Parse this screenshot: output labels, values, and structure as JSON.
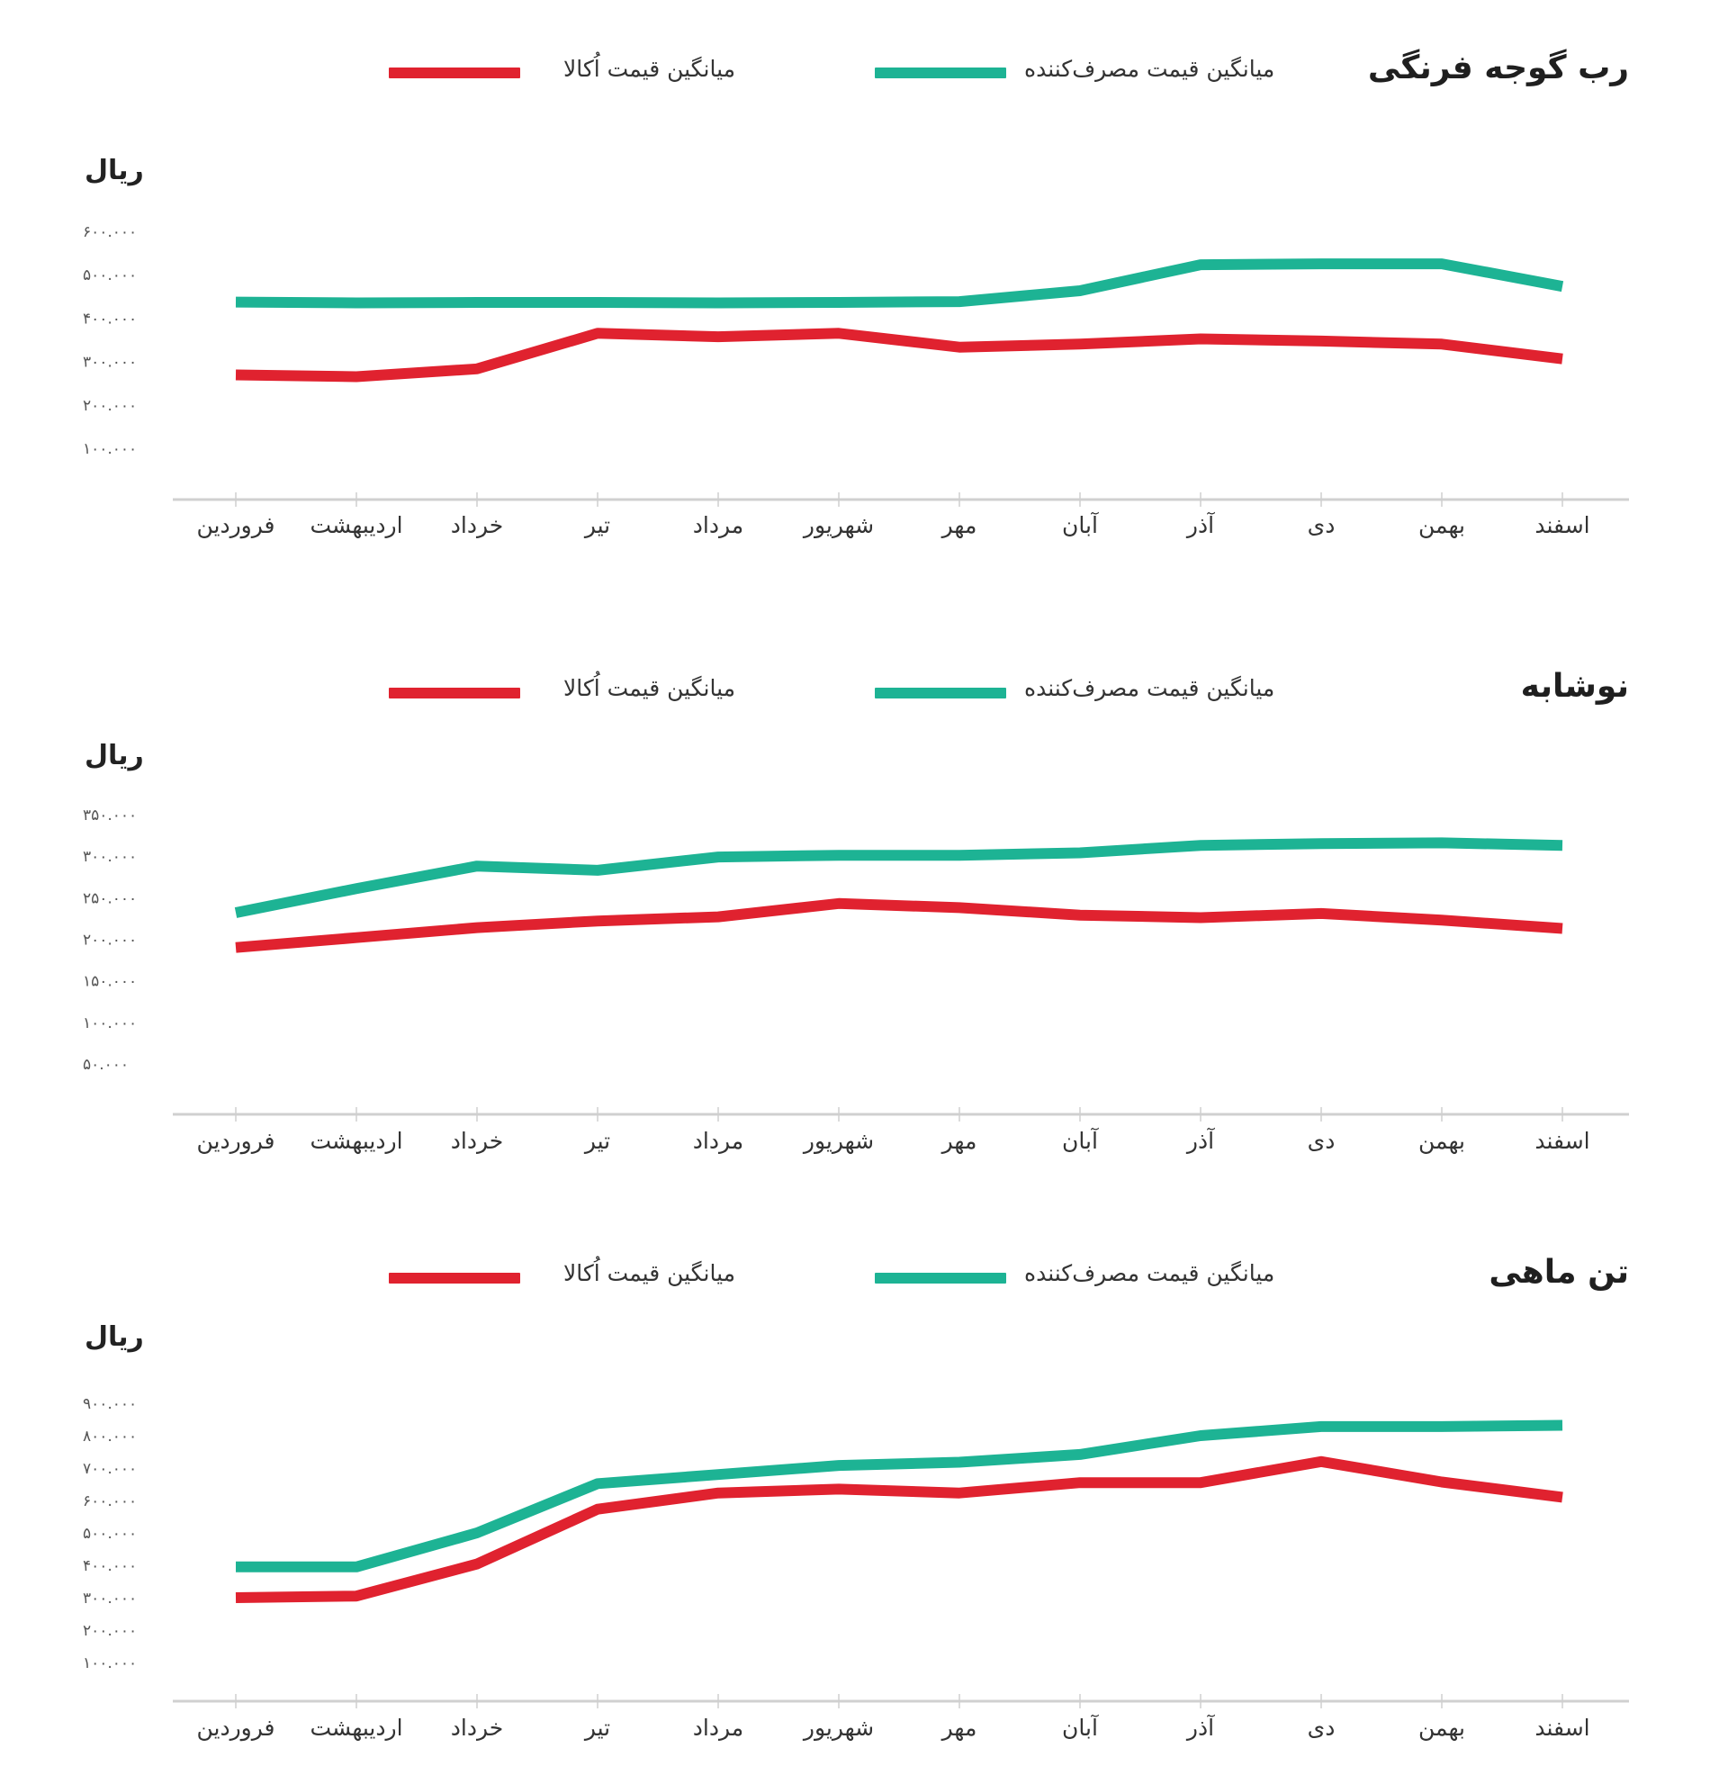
{
  "legend": {
    "consumer_label": "میانگین قیمت مصرف‌کننده",
    "akala_label": "میانگین قیمت اُکالا",
    "consumer_color": "#1DB394",
    "akala_color": "#E0222F"
  },
  "months": [
    "فروردین",
    "اردیبهشت",
    "خرداد",
    "تیر",
    "مرداد",
    "شهریور",
    "مهر",
    "آبان",
    "آذر",
    "دی",
    "بهمن",
    "اسفند"
  ],
  "charts": [
    {
      "title": "رب گوجه فرنگی",
      "unit": "ریال",
      "yticks": [
        "۶۰۰.۰۰۰",
        "۵۰۰.۰۰۰",
        "۴۰۰.۰۰۰",
        "۳۰۰.۰۰۰",
        "۲۰۰.۰۰۰",
        "۱۰۰.۰۰۰"
      ]
    },
    {
      "title": "نوشابه",
      "unit": "ریال",
      "yticks": [
        "۳۵۰.۰۰۰",
        "۳۰۰.۰۰۰",
        "۲۵۰.۰۰۰",
        "۲۰۰.۰۰۰",
        "۱۵۰.۰۰۰",
        "۱۰۰.۰۰۰",
        "۵۰.۰۰۰"
      ]
    },
    {
      "title": "تن ماهی",
      "unit": "ریال",
      "yticks": [
        "۹۰۰.۰۰۰",
        "۸۰۰.۰۰۰",
        "۷۰۰.۰۰۰",
        "۶۰۰.۰۰۰",
        "۵۰۰.۰۰۰",
        "۴۰۰.۰۰۰",
        "۳۰۰.۰۰۰",
        "۲۰۰.۰۰۰",
        "۱۰۰.۰۰۰"
      ]
    }
  ],
  "chart_data": [
    {
      "type": "line",
      "title": "رب گوجه فرنگی",
      "xlabel": "",
      "ylabel": "ریال",
      "categories": [
        "فروردین",
        "اردیبهشت",
        "خرداد",
        "تیر",
        "مرداد",
        "شهریور",
        "مهر",
        "آبان",
        "آذر",
        "دی",
        "بهمن",
        "اسفند"
      ],
      "ylim": [
        100000,
        600000
      ],
      "yticks": [
        100000,
        200000,
        300000,
        400000,
        500000,
        600000
      ],
      "grid": false,
      "legend_position": "top",
      "series": [
        {
          "name": "میانگین قیمت مصرف‌کننده",
          "color": "#1DB394",
          "values": [
            437000,
            435000,
            436000,
            436000,
            435000,
            436000,
            438000,
            463000,
            523000,
            525000,
            525000,
            473000
          ]
        },
        {
          "name": "میانگین قیمت اُکالا",
          "color": "#E0222F",
          "values": [
            269000,
            265000,
            283000,
            365000,
            357000,
            365000,
            333000,
            340000,
            352000,
            347000,
            340000,
            306000
          ]
        }
      ]
    },
    {
      "type": "line",
      "title": "نوشابه",
      "xlabel": "",
      "ylabel": "ریال",
      "categories": [
        "فروردین",
        "اردیبهشت",
        "خرداد",
        "تیر",
        "مرداد",
        "شهریور",
        "مهر",
        "آبان",
        "آذر",
        "دی",
        "بهمن",
        "اسفند"
      ],
      "ylim": [
        50000,
        350000
      ],
      "yticks": [
        50000,
        100000,
        150000,
        200000,
        250000,
        300000,
        350000
      ],
      "grid": false,
      "legend_position": "top",
      "series": [
        {
          "name": "میانگین قیمت مصرف‌کننده",
          "color": "#1DB394",
          "values": [
            232000,
            261000,
            288000,
            283000,
            299000,
            301000,
            301000,
            304000,
            313000,
            315000,
            316000,
            313000
          ]
        },
        {
          "name": "میانگین قیمت اُکالا",
          "color": "#E0222F",
          "values": [
            190000,
            202000,
            214000,
            222000,
            227000,
            243000,
            238000,
            229000,
            226000,
            231000,
            223000,
            213000
          ]
        }
      ]
    },
    {
      "type": "line",
      "title": "تن ماهی",
      "xlabel": "",
      "ylabel": "ریال",
      "categories": [
        "فروردین",
        "اردیبهشت",
        "خرداد",
        "تیر",
        "مرداد",
        "شهریور",
        "مهر",
        "آبان",
        "آذر",
        "دی",
        "بهمن",
        "اسفند"
      ],
      "ylim": [
        100000,
        900000
      ],
      "yticks": [
        100000,
        200000,
        300000,
        400000,
        500000,
        600000,
        700000,
        800000,
        900000
      ],
      "grid": false,
      "legend_position": "top",
      "series": [
        {
          "name": "میانگین قیمت مصرف‌کننده",
          "color": "#1DB394",
          "values": [
            395000,
            395000,
            500000,
            652000,
            680000,
            708000,
            718000,
            742000,
            800000,
            828000,
            828000,
            832000
          ]
        },
        {
          "name": "میانگین قیمت اُکالا",
          "color": "#E0222F",
          "values": [
            300000,
            305000,
            404000,
            573000,
            623000,
            635000,
            623000,
            655000,
            655000,
            720000,
            657000,
            610000
          ]
        }
      ]
    }
  ]
}
